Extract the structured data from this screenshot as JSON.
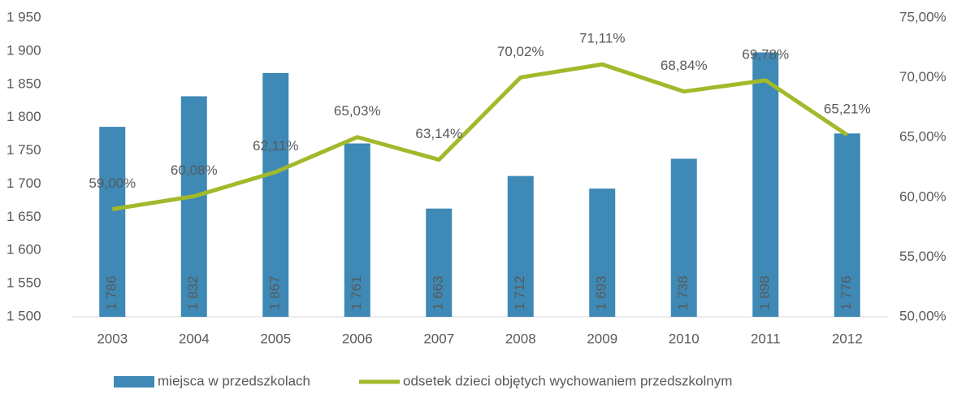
{
  "chart_data": {
    "type": "bar",
    "categories": [
      "2003",
      "2004",
      "2005",
      "2006",
      "2007",
      "2008",
      "2009",
      "2010",
      "2011",
      "2012"
    ],
    "series": [
      {
        "name": "miejsca w przedszkolach",
        "type": "bar",
        "color": "#3e89b6",
        "values": [
          1786,
          1832,
          1867,
          1761,
          1663,
          1712,
          1693,
          1738,
          1898,
          1776
        ],
        "value_labels": [
          "1 786",
          "1 832",
          "1 867",
          "1 761",
          "1 663",
          "1 712",
          "1 693",
          "1 738",
          "1 898",
          "1 776"
        ]
      },
      {
        "name": "odsetek dzieci objętych wychowaniem przedszkolnym",
        "type": "line",
        "axis": "y2",
        "color": "#a2b92b",
        "values": [
          59.0,
          60.08,
          62.11,
          65.03,
          63.14,
          70.02,
          71.11,
          68.84,
          69.78,
          65.21
        ],
        "value_labels": [
          "59,00%",
          "60,08%",
          "62,11%",
          "65,03%",
          "63,14%",
          "70,02%",
          "71,11%",
          "68,84%",
          "69,78%",
          "65,21%"
        ]
      }
    ],
    "ylim": [
      1500,
      1950
    ],
    "yticks": [
      {
        "value": 1500,
        "label": "1 500"
      },
      {
        "value": 1550,
        "label": "1 550"
      },
      {
        "value": 1600,
        "label": "1 600"
      },
      {
        "value": 1650,
        "label": "1 650"
      },
      {
        "value": 1700,
        "label": "1 700"
      },
      {
        "value": 1750,
        "label": "1 750"
      },
      {
        "value": 1800,
        "label": "1 800"
      },
      {
        "value": 1850,
        "label": "1 850"
      },
      {
        "value": 1900,
        "label": "1 900"
      },
      {
        "value": 1950,
        "label": "1 950"
      }
    ],
    "y2lim": [
      50,
      75
    ],
    "y2ticks": [
      {
        "value": 50,
        "label": "50,00%"
      },
      {
        "value": 55,
        "label": "55,00%"
      },
      {
        "value": 60,
        "label": "60,00%"
      },
      {
        "value": 65,
        "label": "65,00%"
      },
      {
        "value": 70,
        "label": "70,00%"
      },
      {
        "value": 75,
        "label": "75,00%"
      }
    ],
    "grid": false,
    "legend": "bottom"
  }
}
